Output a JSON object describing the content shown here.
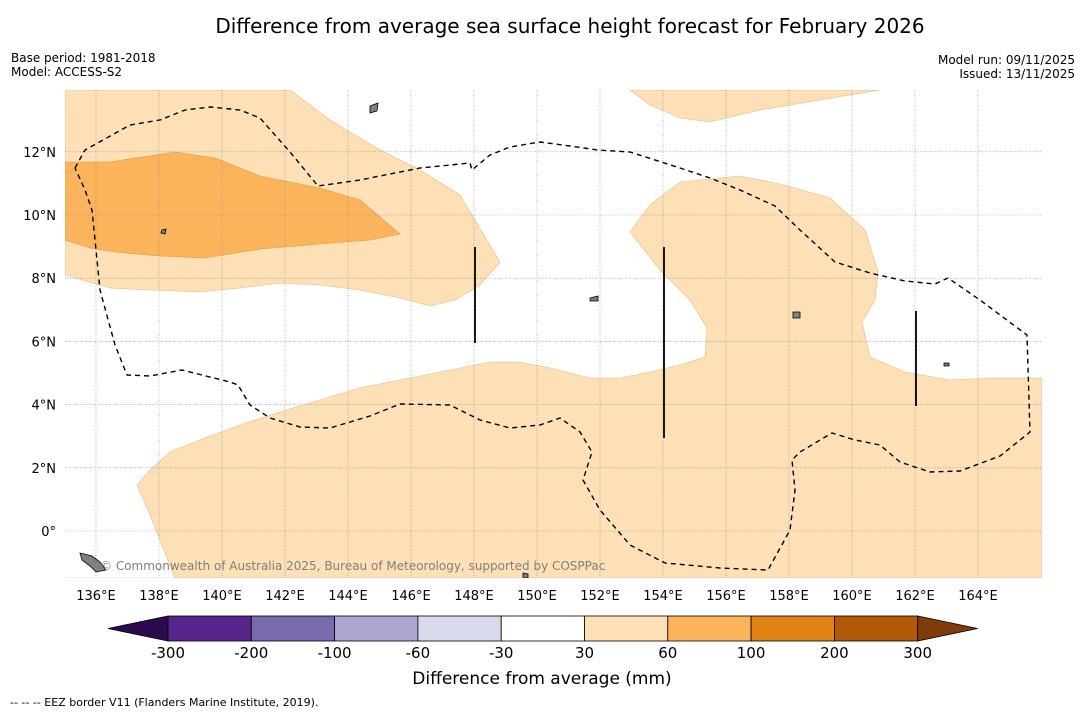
{
  "title": "Difference from average sea surface height forecast for February 2026",
  "base_period": "Base period: 1981-2018",
  "model": "Model: ACCESS-S2",
  "model_run": "Model run: 09/11/2025",
  "issued": "Issued: 13/11/2025",
  "copyright": "© Commonwealth of Australia 2025, Bureau of Meteorology, supported by COSPPac",
  "footnote": "-- -- -- EEZ border V11 (Flanders Marine Institute, 2019).",
  "map": {
    "lon_range": [
      135,
      166
    ],
    "lat_range": [
      -1.5,
      13.9
    ],
    "lon_ticks": [
      "136°E",
      "138°E",
      "140°E",
      "142°E",
      "144°E",
      "146°E",
      "148°E",
      "150°E",
      "152°E",
      "154°E",
      "156°E",
      "158°E",
      "160°E",
      "162°E",
      "164°E"
    ],
    "lat_ticks": [
      "0°",
      "2°N",
      "4°N",
      "6°N",
      "8°N",
      "10°N",
      "12°N"
    ]
  },
  "colorbar": {
    "title": "Difference from average (mm)",
    "labels": [
      "-300",
      "-200",
      "-100",
      "-60",
      "-30",
      "30",
      "60",
      "100",
      "200",
      "300"
    ],
    "colors": [
      "#2d0a4e",
      "#56258a",
      "#7b6aad",
      "#aca6d0",
      "#d9d9ec",
      "#ffffff",
      "#fde0b5",
      "#fbb45c",
      "#e08418",
      "#b35806",
      "#7f3b08"
    ]
  }
}
